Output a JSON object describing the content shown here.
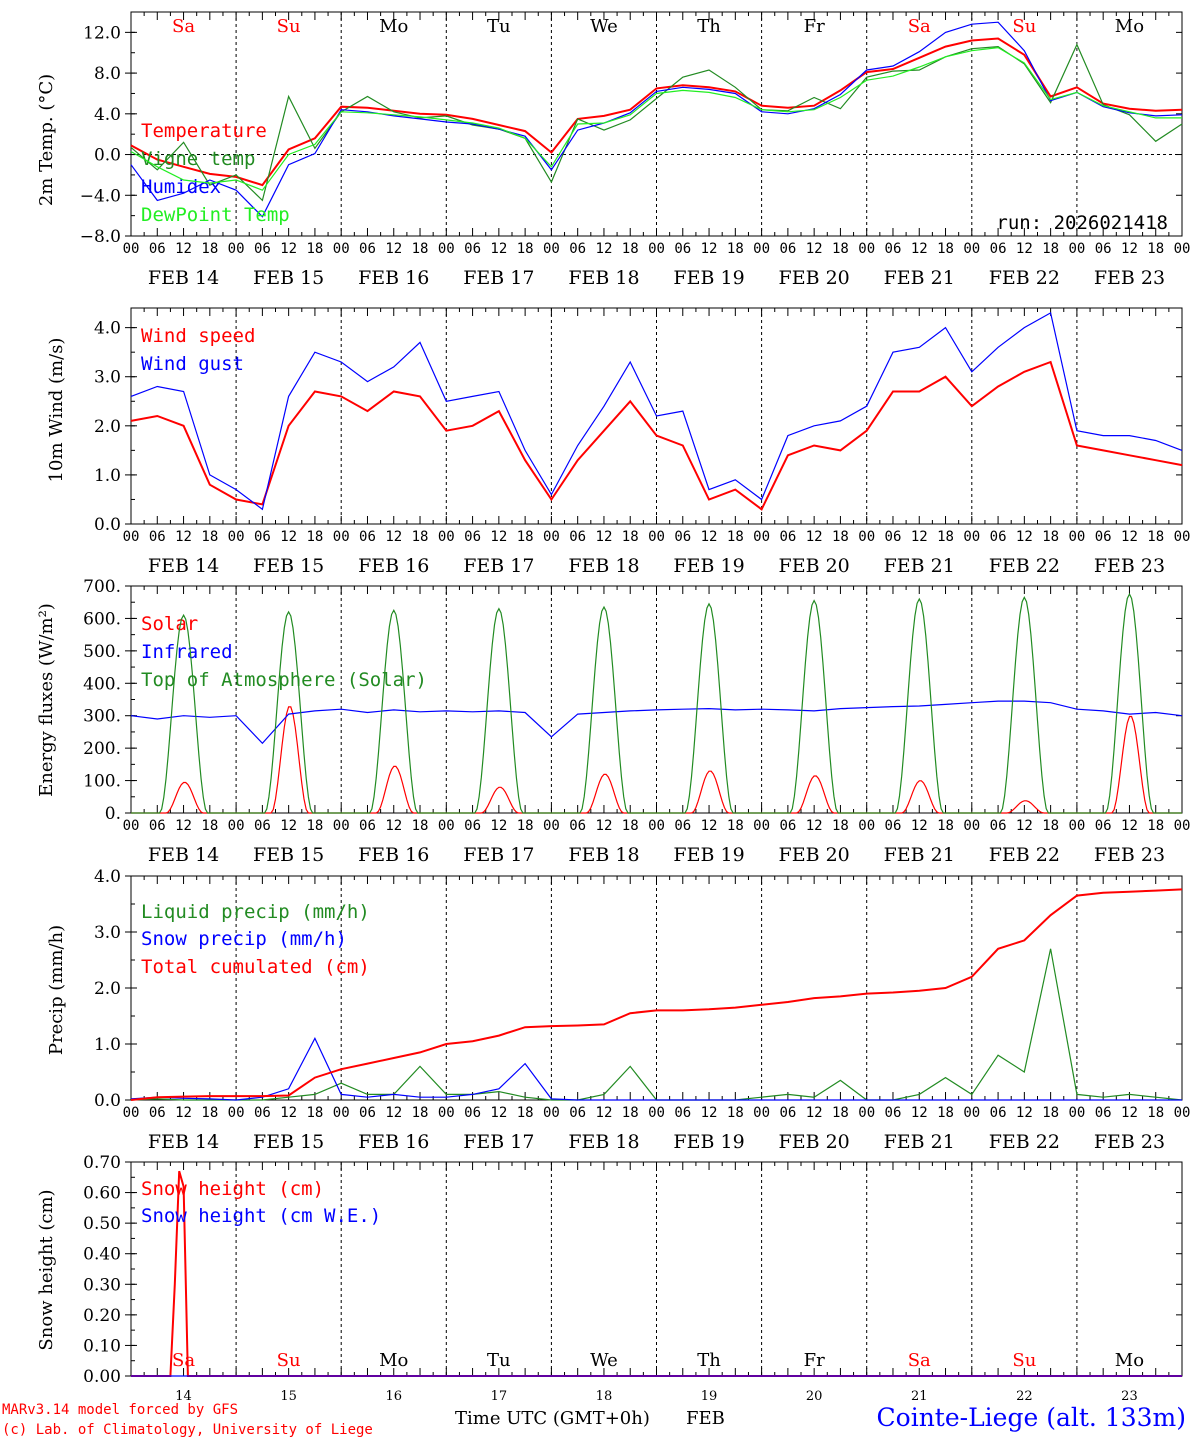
{
  "run_label": "run: 2026021418",
  "footer": {
    "model": "MARv3.14 model forced by GFS",
    "copyright": "(c) Lab. of Climatology, University of Liege",
    "xaxis": "Time UTC (GMT+0h)",
    "month": "FEB",
    "station": "Cointe-Liege (alt. 133m)"
  },
  "days": [
    {
      "abbr": "Sa",
      "date": "FEB 14",
      "num": "14",
      "weekend": true
    },
    {
      "abbr": "Su",
      "date": "FEB 15",
      "num": "15",
      "weekend": true
    },
    {
      "abbr": "Mo",
      "date": "FEB 16",
      "num": "16",
      "weekend": false
    },
    {
      "abbr": "Tu",
      "date": "FEB 17",
      "num": "17",
      "weekend": false
    },
    {
      "abbr": "We",
      "date": "FEB 18",
      "num": "18",
      "weekend": false
    },
    {
      "abbr": "Th",
      "date": "FEB 19",
      "num": "19",
      "weekend": false
    },
    {
      "abbr": "Fr",
      "date": "FEB 20",
      "num": "20",
      "weekend": false
    },
    {
      "abbr": "Sa",
      "date": "FEB 21",
      "num": "21",
      "weekend": true
    },
    {
      "abbr": "Su",
      "date": "FEB 22",
      "num": "22",
      "weekend": true
    },
    {
      "abbr": "Mo",
      "date": "FEB 23",
      "num": "23",
      "weekend": false
    }
  ],
  "hour_ticks": [
    "00",
    "06",
    "12",
    "18"
  ],
  "final_hour_tick": "00",
  "colors": {
    "red": "#ff0000",
    "green": "#228b22",
    "blue": "#0000ff",
    "lightgreen": "#22ee22",
    "weekend": "#ff0000",
    "weekday": "#000000"
  },
  "chart_data": [
    {
      "type": "line",
      "id": "temp",
      "ylabel": "2m Temp. (°C)",
      "ylim": [
        -8,
        14
      ],
      "yticks": [
        -8,
        -4,
        0,
        4,
        8,
        12
      ],
      "ytick_labels": [
        "−8.0",
        "−4.0",
        "0.0",
        "4.0",
        "8.0",
        "12.0"
      ],
      "x_hours": [
        0,
        6,
        12,
        18,
        24,
        30,
        36,
        42,
        48,
        54,
        60,
        66,
        72,
        78,
        84,
        90,
        96,
        102,
        108,
        114,
        120,
        126,
        132,
        138,
        144,
        150,
        156,
        162,
        168,
        174,
        180,
        186,
        192,
        198,
        204,
        210,
        216,
        222,
        228,
        234,
        240
      ],
      "series": [
        {
          "name": "Temperature",
          "color": "red",
          "values": [
            0.9,
            -0.5,
            -1.2,
            -1.9,
            -2.2,
            -3.0,
            0.5,
            1.6,
            4.7,
            4.6,
            4.3,
            4.0,
            3.9,
            3.5,
            2.9,
            2.3,
            0.2,
            3.5,
            3.8,
            4.4,
            6.5,
            6.8,
            6.6,
            6.2,
            4.8,
            4.6,
            4.8,
            6.3,
            8.1,
            8.4,
            9.5,
            10.6,
            11.2,
            11.4,
            9.8,
            5.7,
            6.6,
            5.0,
            4.5,
            4.3,
            4.4
          ]
        },
        {
          "name": "Vigne temp",
          "color": "green",
          "values": [
            0.7,
            -1.5,
            1.2,
            -3.0,
            -2.0,
            -4.5,
            5.7,
            0.6,
            4.2,
            5.7,
            4.2,
            3.6,
            3.8,
            2.9,
            2.5,
            1.6,
            -2.7,
            3.5,
            2.4,
            3.4,
            5.5,
            7.6,
            8.3,
            6.6,
            4.4,
            4.3,
            5.6,
            4.5,
            7.6,
            8.2,
            8.3,
            9.6,
            10.4,
            10.6,
            8.9,
            5.1,
            10.8,
            4.9,
            3.9,
            1.3,
            3.0
          ]
        },
        {
          "name": "Humidex",
          "color": "blue",
          "values": [
            -1.0,
            -4.5,
            -3.8,
            -2.5,
            -3.5,
            -6.1,
            -1.0,
            0.1,
            4.4,
            4.2,
            3.8,
            3.5,
            3.2,
            3.0,
            2.5,
            1.8,
            -1.5,
            2.4,
            3.1,
            4.1,
            6.2,
            6.6,
            6.4,
            6.0,
            4.2,
            4.0,
            4.5,
            5.9,
            8.3,
            8.7,
            10.1,
            12.0,
            12.8,
            13.0,
            10.2,
            5.3,
            6.1,
            4.7,
            4.1,
            3.8,
            3.9
          ]
        },
        {
          "name": "DewPoint Temp",
          "color": "lightgreen",
          "values": [
            0.3,
            -1.2,
            -2.5,
            -2.8,
            -2.5,
            -3.5,
            0.0,
            1.0,
            4.2,
            4.1,
            3.9,
            3.7,
            3.4,
            3.1,
            2.6,
            1.6,
            -1.2,
            3.0,
            3.1,
            3.9,
            6.0,
            6.3,
            6.1,
            5.6,
            4.4,
            4.2,
            4.4,
            5.6,
            7.3,
            7.7,
            8.6,
            9.6,
            10.2,
            10.5,
            9.0,
            5.4,
            6.1,
            4.8,
            4.2,
            3.6,
            3.6
          ]
        }
      ]
    },
    {
      "type": "line",
      "id": "wind",
      "ylabel": "10m Wind (m/s)",
      "ylim": [
        0,
        4.4
      ],
      "yticks": [
        0,
        1,
        2,
        3,
        4
      ],
      "ytick_labels": [
        "0.0",
        "1.0",
        "2.0",
        "3.0",
        "4.0"
      ],
      "x_hours": [
        0,
        6,
        12,
        18,
        24,
        30,
        36,
        42,
        48,
        54,
        60,
        66,
        72,
        78,
        84,
        90,
        96,
        102,
        108,
        114,
        120,
        126,
        132,
        138,
        144,
        150,
        156,
        162,
        168,
        174,
        180,
        186,
        192,
        198,
        204,
        210,
        216,
        222,
        228,
        234,
        240
      ],
      "series": [
        {
          "name": "Wind speed",
          "color": "red",
          "values": [
            2.1,
            2.2,
            2.0,
            0.8,
            0.5,
            0.4,
            2.0,
            2.7,
            2.6,
            2.3,
            2.7,
            2.6,
            1.9,
            2.0,
            2.3,
            1.3,
            0.5,
            1.3,
            1.9,
            2.5,
            1.8,
            1.6,
            0.5,
            0.7,
            0.3,
            1.4,
            1.6,
            1.5,
            1.9,
            2.7,
            2.7,
            3.0,
            2.4,
            2.8,
            3.1,
            3.3,
            1.6,
            1.5,
            1.4,
            1.3,
            1.2
          ]
        },
        {
          "name": "Wind gust",
          "color": "blue",
          "values": [
            2.6,
            2.8,
            2.7,
            1.0,
            0.7,
            0.3,
            2.6,
            3.5,
            3.3,
            2.9,
            3.2,
            3.7,
            2.5,
            2.6,
            2.7,
            1.5,
            0.6,
            1.6,
            2.4,
            3.3,
            2.2,
            2.3,
            0.7,
            0.9,
            0.5,
            1.8,
            2.0,
            2.1,
            2.4,
            3.5,
            3.6,
            4.0,
            3.1,
            3.6,
            4.0,
            4.3,
            1.9,
            1.8,
            1.8,
            1.7,
            1.5
          ]
        }
      ]
    },
    {
      "type": "line",
      "id": "energy",
      "ylabel": "Energy fluxes (W/m²)",
      "ylim": [
        0,
        700
      ],
      "yticks": [
        0,
        100,
        200,
        300,
        400,
        500,
        600,
        700
      ],
      "ytick_labels": [
        "0.",
        "100.",
        "200.",
        "300.",
        "400.",
        "500.",
        "600.",
        "700."
      ],
      "series": [
        {
          "name": "Solar",
          "color": "red",
          "daily_peak": [
            95,
            330,
            145,
            80,
            120,
            130,
            115,
            100,
            38,
            300
          ]
        },
        {
          "name": "Infrared",
          "color": "blue",
          "x_hours": [
            0,
            6,
            12,
            18,
            24,
            30,
            36,
            42,
            48,
            54,
            60,
            66,
            72,
            78,
            84,
            90,
            96,
            102,
            108,
            114,
            120,
            126,
            132,
            138,
            144,
            150,
            156,
            162,
            168,
            174,
            180,
            186,
            192,
            198,
            204,
            210,
            216,
            222,
            228,
            234,
            240
          ],
          "values": [
            300,
            290,
            300,
            295,
            300,
            215,
            305,
            315,
            320,
            310,
            318,
            312,
            315,
            312,
            315,
            310,
            235,
            305,
            310,
            315,
            318,
            320,
            322,
            318,
            320,
            318,
            315,
            322,
            325,
            328,
            330,
            335,
            340,
            345,
            345,
            340,
            320,
            315,
            305,
            310,
            300
          ]
        },
        {
          "name": "Top of Atmosphere (Solar)",
          "color": "green",
          "daily_peak": [
            610,
            620,
            625,
            630,
            635,
            645,
            655,
            660,
            665,
            675
          ]
        }
      ]
    },
    {
      "type": "line",
      "id": "precip",
      "ylabel": "Precip (mm/h)",
      "ylim": [
        0,
        4
      ],
      "yticks": [
        0,
        1,
        2,
        3,
        4
      ],
      "ytick_labels": [
        "0.0",
        "1.0",
        "2.0",
        "3.0",
        "4.0"
      ],
      "x_hours": [
        0,
        6,
        12,
        18,
        24,
        30,
        36,
        42,
        48,
        54,
        60,
        66,
        72,
        78,
        84,
        90,
        96,
        102,
        108,
        114,
        120,
        126,
        132,
        138,
        144,
        150,
        156,
        162,
        168,
        174,
        180,
        186,
        192,
        198,
        204,
        210,
        216,
        222,
        228,
        234,
        240
      ],
      "series": [
        {
          "name": "Liquid precip (mm/h)",
          "color": "green",
          "values": [
            0.0,
            0.02,
            0.0,
            0.0,
            0.0,
            0.0,
            0.05,
            0.1,
            0.3,
            0.1,
            0.1,
            0.6,
            0.1,
            0.1,
            0.15,
            0.05,
            0.0,
            0.0,
            0.1,
            0.6,
            0.0,
            0.0,
            0.0,
            0.0,
            0.05,
            0.1,
            0.05,
            0.35,
            0.0,
            0.0,
            0.1,
            0.4,
            0.1,
            0.8,
            0.5,
            2.7,
            0.1,
            0.05,
            0.1,
            0.05,
            0.0
          ]
        },
        {
          "name": "Snow precip (mm/h)",
          "color": "blue",
          "values": [
            0.02,
            0.05,
            0.03,
            0.02,
            0.0,
            0.05,
            0.2,
            1.1,
            0.1,
            0.05,
            0.1,
            0.05,
            0.05,
            0.1,
            0.2,
            0.65,
            0.02,
            0.0,
            0.0,
            0.0,
            0.0,
            0.0,
            0.0,
            0.0,
            0.0,
            0.0,
            0.0,
            0.0,
            0.0,
            0.0,
            0.0,
            0.0,
            0.0,
            0.0,
            0.0,
            0.0,
            0.0,
            0.0,
            0.0,
            0.0,
            0.0
          ]
        },
        {
          "name": "Total cumulated (cm)",
          "color": "red",
          "values": [
            0.0,
            0.05,
            0.06,
            0.07,
            0.07,
            0.07,
            0.08,
            0.4,
            0.55,
            0.65,
            0.75,
            0.85,
            1.0,
            1.05,
            1.15,
            1.3,
            1.32,
            1.33,
            1.35,
            1.55,
            1.6,
            1.6,
            1.62,
            1.65,
            1.7,
            1.75,
            1.82,
            1.85,
            1.9,
            1.92,
            1.95,
            2.0,
            2.2,
            2.7,
            2.85,
            3.3,
            3.65,
            3.7,
            3.72,
            3.74,
            3.76
          ]
        }
      ]
    },
    {
      "type": "line",
      "id": "snow",
      "ylabel": "Snow height (cm)",
      "ylim": [
        0,
        0.7
      ],
      "yticks": [
        0,
        0.1,
        0.2,
        0.3,
        0.4,
        0.5,
        0.6,
        0.7
      ],
      "ytick_labels": [
        "0.00",
        "0.10",
        "0.20",
        "0.30",
        "0.40",
        "0.50",
        "0.60",
        "0.70"
      ],
      "x_hours": [
        0,
        9,
        10,
        11,
        12,
        13,
        240
      ],
      "series": [
        {
          "name": "Snow height (cm)",
          "color": "red",
          "values": [
            0,
            0,
            0.3,
            0.67,
            0.62,
            0,
            0
          ]
        },
        {
          "name": "Snow height (cm W.E.)",
          "color": "blue",
          "values": [
            0,
            0,
            0,
            0,
            0,
            0,
            0
          ]
        }
      ]
    }
  ]
}
